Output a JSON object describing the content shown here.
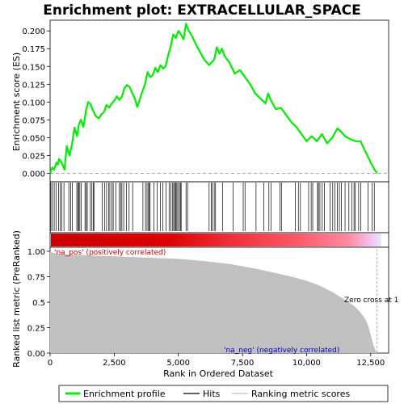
{
  "chart_data": {
    "type": "line",
    "title": "Enrichment plot: EXTRACELLULAR_SPACE",
    "top_panel": {
      "ylabel": "Enrichment score (ES)",
      "ylim": [
        -0.012,
        0.215
      ],
      "yticks": [
        0.0,
        0.025,
        0.05,
        0.075,
        0.1,
        0.125,
        0.15,
        0.175,
        0.2
      ],
      "ytick_labels": [
        "0.000",
        "0.025",
        "0.050",
        "0.075",
        "0.100",
        "0.125",
        "0.150",
        "0.175",
        "0.200"
      ],
      "series": [
        {
          "name": "Enrichment profile",
          "color": "#00ee00",
          "x": [
            0,
            80,
            150,
            250,
            300,
            350,
            450,
            560,
            650,
            760,
            850,
            950,
            1050,
            1120,
            1200,
            1300,
            1400,
            1480,
            1560,
            1650,
            1780,
            1900,
            2000,
            2100,
            2200,
            2300,
            2400,
            2500,
            2600,
            2700,
            2800,
            2900,
            3000,
            3100,
            3200,
            3300,
            3400,
            3550,
            3700,
            3800,
            3900,
            4000,
            4100,
            4200,
            4300,
            4400,
            4500,
            4600,
            4700,
            4800,
            4900,
            5000,
            5100,
            5200,
            5300,
            5400,
            5500,
            5700,
            6000,
            6200,
            6400,
            6500,
            6600,
            6700,
            6800,
            7000,
            7200,
            7400,
            7600,
            7800,
            8000,
            8200,
            8400,
            8500,
            8600,
            8800,
            9000,
            9200,
            9400,
            9600,
            9800,
            10000,
            10200,
            10400,
            10600,
            10800,
            11000,
            11200,
            11300,
            11500,
            11700,
            11900,
            12100,
            12300,
            12500,
            12650,
            12750
          ],
          "y": [
            0.0,
            0.008,
            0.005,
            0.015,
            0.012,
            0.02,
            0.015,
            0.005,
            0.038,
            0.025,
            0.04,
            0.064,
            0.052,
            0.068,
            0.075,
            0.065,
            0.088,
            0.1,
            0.098,
            0.09,
            0.08,
            0.077,
            0.083,
            0.086,
            0.096,
            0.092,
            0.098,
            0.102,
            0.108,
            0.103,
            0.108,
            0.12,
            0.124,
            0.121,
            0.113,
            0.105,
            0.093,
            0.11,
            0.125,
            0.142,
            0.135,
            0.138,
            0.148,
            0.142,
            0.152,
            0.147,
            0.15,
            0.165,
            0.178,
            0.195,
            0.19,
            0.2,
            0.195,
            0.188,
            0.21,
            0.2,
            0.195,
            0.18,
            0.16,
            0.152,
            0.16,
            0.177,
            0.168,
            0.175,
            0.165,
            0.155,
            0.14,
            0.145,
            0.135,
            0.125,
            0.112,
            0.105,
            0.098,
            0.112,
            0.103,
            0.09,
            0.092,
            0.082,
            0.072,
            0.065,
            0.055,
            0.045,
            0.052,
            0.045,
            0.055,
            0.042,
            0.05,
            0.063,
            0.06,
            0.052,
            0.048,
            0.045,
            0.045,
            0.03,
            0.015,
            0.005,
            0.0
          ]
        }
      ]
    },
    "hits_panel": {
      "name": "Hits",
      "hit_ranks": [
        30,
        90,
        160,
        230,
        330,
        390,
        460,
        540,
        730,
        800,
        870,
        1040,
        1080,
        1120,
        1160,
        1210,
        1360,
        1410,
        1450,
        1570,
        1630,
        1680,
        1710,
        2030,
        2120,
        2200,
        2290,
        2330,
        2410,
        2460,
        2560,
        2700,
        2760,
        2800,
        2870,
        2980,
        3080,
        3220,
        3620,
        3720,
        3780,
        3840,
        3860,
        3900,
        4050,
        4170,
        4300,
        4400,
        4520,
        4640,
        4710,
        4780,
        4820,
        4860,
        4900,
        4940,
        4980,
        5040,
        5080,
        5110,
        5300,
        5360,
        6200,
        6280,
        6330,
        6400,
        6450,
        6720,
        7130,
        7530,
        7600,
        8030,
        8330,
        8530,
        8610,
        8960,
        9020,
        9560,
        9680,
        9760,
        10080,
        10180,
        10240,
        10430,
        10460,
        10520,
        10610,
        10700,
        10920,
        11020,
        11100,
        11200,
        11280,
        11360,
        11500,
        11650,
        11760,
        11850,
        11900,
        12030,
        12110,
        12400,
        12560,
        12640
      ]
    },
    "color_bar": {
      "stops": [
        {
          "at": 0.0,
          "color": "#cc0000"
        },
        {
          "at": 0.35,
          "color": "#dd0000"
        },
        {
          "at": 0.55,
          "color": "#f0303a"
        },
        {
          "at": 0.75,
          "color": "#ff5a6a"
        },
        {
          "at": 0.9,
          "color": "#ff8aa0"
        },
        {
          "at": 0.97,
          "color": "#f2c4f2"
        },
        {
          "at": 1.0,
          "color": "#e8e8ff"
        }
      ]
    },
    "bottom_panel": {
      "ylabel": "Ranked list metric (PreRanked)",
      "xlabel": "Rank in Ordered Dataset",
      "ylim": [
        0.0,
        1.0
      ],
      "yticks": [
        0.0,
        0.25,
        0.5,
        0.75,
        1.0
      ],
      "ytick_labels": [
        "0.00",
        "0.25",
        "0.5",
        "0.75",
        "1.00"
      ],
      "xlim": [
        0,
        13200
      ],
      "xticks": [
        0,
        2500,
        5000,
        7500,
        10000,
        12500
      ],
      "xtick_labels": [
        "0",
        "2,500",
        "5,000",
        "7,500",
        "10,000",
        "12,500"
      ],
      "series": [
        {
          "name": "Ranking metric scores",
          "color": "#c0c0c0",
          "x": [
            0,
            100,
            300,
            600,
            1000,
            2000,
            3000,
            4000,
            5000,
            6000,
            7000,
            8000,
            9000,
            9500,
            10000,
            10500,
            11000,
            11300,
            11600,
            11900,
            12100,
            12300,
            12400,
            12500,
            12600,
            12700,
            12750
          ],
          "y": [
            1.0,
            0.985,
            0.975,
            0.97,
            0.965,
            0.955,
            0.945,
            0.935,
            0.925,
            0.905,
            0.875,
            0.83,
            0.775,
            0.745,
            0.71,
            0.665,
            0.6,
            0.555,
            0.51,
            0.455,
            0.4,
            0.33,
            0.27,
            0.18,
            0.08,
            0.02,
            0.0
          ]
        }
      ],
      "annotations": {
        "pos_label": "'na_pos' (positively correlated)",
        "neg_label": "'na_neg' (negatively correlated)",
        "zero_cross": "Zero cross at 1"
      }
    },
    "legend": {
      "placement": "bottom",
      "entries": [
        {
          "label": "Enrichment profile",
          "color": "#00ee00",
          "kind": "thick-line"
        },
        {
          "label": "Hits",
          "color": "#000000",
          "kind": "line"
        },
        {
          "label": "Ranking metric scores",
          "color": "#c0c0c0",
          "kind": "line"
        }
      ]
    }
  }
}
